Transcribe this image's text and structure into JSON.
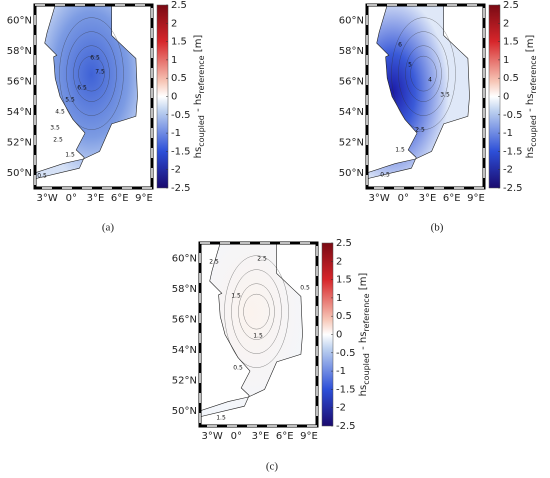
{
  "axes": {
    "lat_ticks": [
      "60°N",
      "58°N",
      "56°N",
      "54°N",
      "52°N",
      "50°N"
    ],
    "lat_values": [
      60,
      58,
      56,
      54,
      52,
      50
    ],
    "lon_ticks": [
      "3°W",
      "0°",
      "3°E",
      "6°E",
      "9°E"
    ],
    "lon_values": [
      -3,
      0,
      3,
      6,
      9
    ]
  },
  "colorbar": {
    "lim": [
      -2.5,
      2.5
    ],
    "ticks": [
      2.5,
      2,
      1.5,
      1,
      0.5,
      0,
      -0.5,
      -1,
      -1.5,
      -2,
      -2.5
    ],
    "label": {
      "base1": "hs",
      "sub1": "coupled",
      "base2": " - hs",
      "sub2": "reference",
      "unit": " [m]"
    }
  },
  "panels": [
    {
      "label": "(a)",
      "contour_labels": [
        "6.5",
        "7.5",
        "6.5",
        "5.5",
        "4.5",
        "3.5",
        "2.5",
        "1.5",
        "0.5"
      ]
    },
    {
      "label": "(b)",
      "contour_labels": [
        "6",
        "5",
        "4",
        "3.5",
        "2.5",
        "1.5",
        "0.5"
      ]
    },
    {
      "label": "(c)",
      "contour_labels": [
        "2.5",
        "1.5",
        "0.5",
        "2.5",
        "1.5",
        "0.5",
        "1.5"
      ]
    }
  ]
}
